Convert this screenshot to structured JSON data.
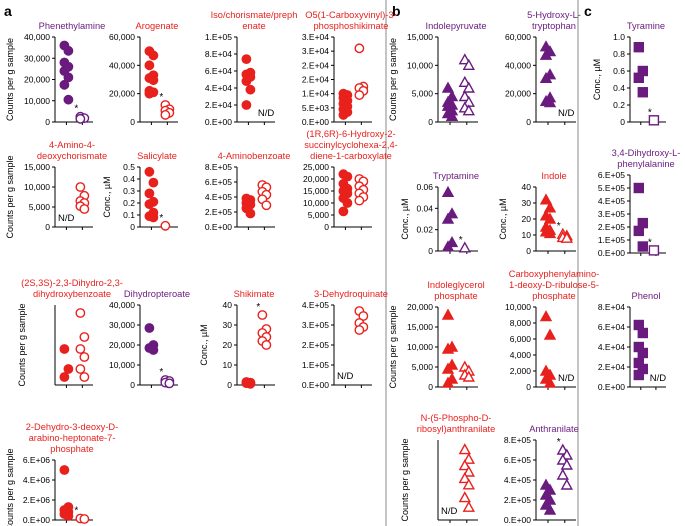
{
  "panel_letters": [
    "a",
    "b",
    "c"
  ],
  "colors": {
    "red": "#e8211d",
    "purple": "#6a1b7e",
    "axis": "#000000"
  },
  "chart_data": [
    {
      "type": "scatter",
      "panel": "a",
      "title": [
        "Phenethylamine"
      ],
      "color": "purple",
      "marker": "circle",
      "ylabel": "Counts per g sample",
      "yticks": [
        "0",
        "10,000",
        "20,000",
        "30,000",
        "40,000"
      ],
      "ylim": [
        0,
        40000
      ],
      "filled": [
        36000,
        33500,
        28000,
        26000,
        24000,
        21000,
        17500,
        10500
      ],
      "open": [
        2500,
        1800,
        1500
      ],
      "star": true,
      "nd": false
    },
    {
      "type": "scatter",
      "panel": "a",
      "title": [
        "Arogenate"
      ],
      "color": "red",
      "marker": "circle",
      "ylabel": "",
      "yticks": [
        "0",
        "20,000",
        "40,000",
        "60,000"
      ],
      "ylim": [
        0,
        60000
      ],
      "filled": [
        50000,
        47000,
        40000,
        33000,
        31000,
        29500,
        22000,
        21000,
        20000
      ],
      "open": [
        12000,
        9000,
        8000,
        6500,
        5000
      ],
      "star": true,
      "nd": false
    },
    {
      "type": "scatter",
      "panel": "a",
      "title": [
        "Iso/chorismate/preph",
        "enate"
      ],
      "color": "red",
      "marker": "circle",
      "ylabel": "",
      "yticks": [
        "0.E+00",
        "2.E+04",
        "4.E+04",
        "6.E+04",
        "8.E+04",
        "1.E+05"
      ],
      "ylim": [
        0,
        100000
      ],
      "filled": [
        74000,
        58000,
        56000,
        53000,
        48000,
        38000,
        20000
      ],
      "open": [],
      "star": false,
      "nd": true
    },
    {
      "type": "scatter",
      "panel": "a",
      "title": [
        "O5(1-Carboxyvinyl)-3-",
        "phosphoshikimate"
      ],
      "color": "red",
      "marker": "circle",
      "ylabel": "",
      "yticks": [
        "0.E+00",
        "5.E+03",
        "1.E+04",
        "2.E+04",
        "2.E+04",
        "3.E+04",
        "3.E+04"
      ],
      "ylim": [
        0,
        30000
      ],
      "filled": [
        10000,
        9500,
        8500,
        7500,
        6500,
        5500,
        4500,
        3500,
        2500
      ],
      "open": [
        26000,
        12500,
        12000,
        11000,
        9500
      ],
      "star": false,
      "nd": false
    },
    {
      "type": "scatter",
      "panel": "a",
      "title": [
        "4-Amino-4-",
        "deoxychorismate"
      ],
      "color": "red",
      "marker": "circle",
      "ylabel": "Counts per g sample",
      "yticks": [
        "0",
        "5,000",
        "10,000",
        "15,000"
      ],
      "ylim": [
        0,
        15000
      ],
      "filled": [],
      "open": [
        10000,
        7800,
        6500,
        6000,
        5200,
        4500
      ],
      "star": false,
      "nd": true
    },
    {
      "type": "scatter",
      "panel": "a",
      "title": [
        "Salicylate"
      ],
      "color": "red",
      "marker": "circle",
      "ylabel": "Conc., µM",
      "yticks": [
        "0",
        "0.1",
        "0.2",
        "0.3",
        "0.4",
        "0.5"
      ],
      "ylim": [
        0,
        0.5
      ],
      "filled": [
        0.46,
        0.37,
        0.28,
        0.21,
        0.19,
        0.12,
        0.09,
        0.08
      ],
      "open": [
        0.01
      ],
      "star": true,
      "nd": false
    },
    {
      "type": "scatter",
      "panel": "a",
      "title": [
        "4-Aminobenzoate"
      ],
      "color": "red",
      "marker": "circle",
      "ylabel": "",
      "yticks": [
        "0.E+00",
        "2.E+05",
        "4.E+05",
        "6.E+05",
        "8.E+05"
      ],
      "ylim": [
        0,
        800000
      ],
      "filled": [
        380000,
        360000,
        320000,
        300000,
        250000,
        180000
      ],
      "open": [
        560000,
        530000,
        470000,
        430000,
        370000,
        290000
      ],
      "star": false,
      "nd": false
    },
    {
      "type": "scatter",
      "panel": "a",
      "title": [
        "(1R,6R)-6-Hydroxy-2-",
        "succinylcyclohexa-2,4-",
        "diene-1-carboxylate"
      ],
      "color": "red",
      "marker": "circle",
      "ylabel": "",
      "yticks": [
        "0",
        "5,000",
        "10,000",
        "15,000",
        "20,000",
        "25,000"
      ],
      "ylim": [
        0,
        25000
      ],
      "filled": [
        22000,
        21000,
        18000,
        16000,
        15000,
        14000,
        12000,
        10000,
        6500
      ],
      "open": [
        20000,
        19000,
        17000,
        15500,
        14000,
        12500,
        11000
      ],
      "star": false,
      "nd": false
    },
    {
      "type": "scatter",
      "panel": "a",
      "title": [
        "(2S,3S)-2,3-Dihydro-2,3-",
        "dihydroxybenzoate"
      ],
      "color": "red",
      "marker": "circle",
      "ylabel": "Counts per g sample",
      "yticks": [],
      "ylim": [
        0,
        2000
      ],
      "filled": [
        900,
        400,
        200
      ],
      "open": [
        1800,
        1200,
        900,
        700,
        400,
        200
      ],
      "star": false,
      "nd": false
    },
    {
      "type": "scatter",
      "panel": "a",
      "title": [
        "Dihydropteroate"
      ],
      "color": "purple",
      "marker": "circle",
      "ylabel": "",
      "yticks": [
        "0",
        "10,000",
        "20,000",
        "30,000",
        "40,000"
      ],
      "ylim": [
        0,
        40000
      ],
      "filled": [
        28500,
        20000,
        18500,
        17500
      ],
      "open": [
        2500,
        2000,
        1200,
        800
      ],
      "star": true,
      "nd": false
    },
    {
      "type": "scatter",
      "panel": "a",
      "title": [
        "Shikimate"
      ],
      "color": "red",
      "marker": "circle",
      "ylabel": "Conc., µM",
      "yticks": [
        "0",
        "10",
        "20",
        "30",
        "40"
      ],
      "ylim": [
        0,
        40
      ],
      "filled": [
        1.5,
        1.2,
        0.9,
        0.6
      ],
      "open": [
        35,
        28,
        26,
        24,
        22,
        20
      ],
      "star": true,
      "nd": false
    },
    {
      "type": "scatter",
      "panel": "a",
      "title": [
        "3-Dehydroquinate"
      ],
      "color": "red",
      "marker": "circle",
      "ylabel": "",
      "yticks": [
        "0.E+00",
        "1.E+05",
        "2.E+05",
        "3.E+05",
        "4.E+05"
      ],
      "ylim": [
        0,
        400000
      ],
      "filled": [],
      "open": [
        370000,
        345000,
        310000,
        290000,
        275000
      ],
      "star": false,
      "nd": true
    },
    {
      "type": "scatter",
      "panel": "a",
      "title": [
        "2-Dehydro-3-deoxy-D-",
        "arabino-heptonate-7-",
        "phosphate"
      ],
      "color": "red",
      "marker": "circle",
      "ylabel": "Counts per g sample",
      "yticks": [
        "0.E+00",
        "2.E+06",
        "4.E+06",
        "6.E+06"
      ],
      "ylim": [
        0,
        6000000
      ],
      "filled": [
        5000000,
        1300000,
        1000000,
        800000,
        600000,
        400000
      ],
      "open": [
        150000,
        100000
      ],
      "star": true,
      "nd": false
    },
    {
      "type": "scatter",
      "panel": "b",
      "title": [
        "Indolepyruvate"
      ],
      "color": "purple",
      "marker": "triangle",
      "ylabel": "Counts per g sample",
      "yticks": [
        "0",
        "5,000",
        "10,000",
        "15,000"
      ],
      "ylim": [
        0,
        15000
      ],
      "filled": [
        6000,
        4500,
        3500,
        3000,
        2800,
        2000,
        1500,
        1000
      ],
      "open": [
        11000,
        10000,
        7000,
        6000,
        4500,
        3500,
        2500,
        2000
      ],
      "star": false,
      "nd": false
    },
    {
      "type": "scatter",
      "panel": "b",
      "title": [
        "5-Hydroxy-L-",
        "tryptophan"
      ],
      "color": "purple",
      "marker": "triangle",
      "ylabel": "",
      "yticks": [
        "0",
        "20,000",
        "40,000",
        "60,000"
      ],
      "ylim": [
        0,
        70000
      ],
      "filled": [
        62000,
        58000,
        55000,
        39000,
        36000,
        20000,
        17000,
        16000
      ],
      "open": [],
      "star": false,
      "nd": true
    },
    {
      "type": "scatter",
      "panel": "b",
      "title": [
        "Tryptamine"
      ],
      "color": "purple",
      "marker": "triangle",
      "ylabel": "Conc., µM",
      "yticks": [
        "0",
        "0.02",
        "0.04",
        "0.06"
      ],
      "ylim": [
        0,
        0.06
      ],
      "filled": [
        0.055,
        0.035,
        0.03,
        0.008,
        0.004
      ],
      "open": [
        0.003
      ],
      "star": true,
      "nd": false
    },
    {
      "type": "scatter",
      "panel": "b",
      "title": [
        "Indole"
      ],
      "color": "red",
      "marker": "triangle",
      "ylabel": "Conc., µM",
      "yticks": [
        "0",
        "10",
        "20",
        "30",
        "40"
      ],
      "ylim": [
        0,
        40
      ],
      "filled": [
        32,
        27,
        22,
        20,
        15,
        13,
        12,
        11
      ],
      "open": [
        10.5,
        9.5,
        8.5,
        8
      ],
      "star": true,
      "nd": false
    },
    {
      "type": "scatter",
      "panel": "b",
      "title": [
        "Indoleglycerol",
        "phosphate"
      ],
      "color": "red",
      "marker": "triangle",
      "ylabel": "Counts per g sample",
      "yticks": [
        "0",
        "5,000",
        "10,000",
        "15,000",
        "20,000"
      ],
      "ylim": [
        0,
        20000
      ],
      "filled": [
        18000,
        10000,
        9500,
        5500,
        4500,
        2000,
        1000
      ],
      "open": [
        5000,
        4000,
        3000,
        2500
      ],
      "star": false,
      "nd": false
    },
    {
      "type": "scatter",
      "panel": "b",
      "title": [
        "Carboxyphenylamino-",
        "1-deoxy-D-ribulose-5-",
        "phosphate"
      ],
      "color": "red",
      "marker": "triangle",
      "ylabel": "",
      "yticks": [
        "0",
        "2,000",
        "4,000",
        "6,000",
        "8,000",
        "10,000"
      ],
      "ylim": [
        0,
        10000
      ],
      "filled": [
        8800,
        6500,
        2000,
        1500,
        1000,
        500
      ],
      "open": [],
      "star": false,
      "nd": true
    },
    {
      "type": "scatter",
      "panel": "b",
      "title": [
        "N-(5-Phospho-D-",
        "ribosyl)anthranilate"
      ],
      "color": "red",
      "marker": "triangle",
      "ylabel": "Counts per g sample",
      "yticks": [],
      "ylim": [
        0,
        2500
      ],
      "filled": [],
      "open": [
        2200,
        1900,
        1700,
        1500,
        1300,
        1100,
        700,
        400
      ],
      "star": false,
      "nd": true
    },
    {
      "type": "scatter",
      "panel": "b",
      "title": [
        "Anthranilate"
      ],
      "color": "purple",
      "marker": "triangle",
      "ylabel": "",
      "yticks": [
        "0.E+00",
        "2.E+05",
        "4.E+05",
        "6.E+05",
        "8.E+05"
      ],
      "ylim": [
        0,
        800000
      ],
      "filled": [
        350000,
        300000,
        250000,
        200000,
        150000,
        100000
      ],
      "open": [
        700000,
        650000,
        600000,
        550000,
        450000,
        350000
      ],
      "star": true,
      "nd": false
    },
    {
      "type": "scatter",
      "panel": "c",
      "title": [
        "Tyramine"
      ],
      "color": "purple",
      "marker": "square",
      "ylabel": "Conc., µM",
      "yticks": [
        "0",
        "0.2",
        "0.4",
        "0.6",
        "0.8",
        "1.0"
      ],
      "ylim": [
        0,
        1.0
      ],
      "filled": [
        0.88,
        0.6,
        0.52,
        0.35
      ],
      "open": [
        0.02
      ],
      "star": true,
      "nd": false
    },
    {
      "type": "scatter",
      "panel": "c",
      "title": [
        "3,4-Dihydroxy-L-",
        "phenylalanine"
      ],
      "color": "purple",
      "marker": "square",
      "ylabel": "",
      "yticks": [
        "0.E+00",
        "1.E+05",
        "2.E+05",
        "3.E+05",
        "4.E+05",
        "5.E+05",
        "6.E+05"
      ],
      "ylim": [
        0,
        600000
      ],
      "filled": [
        500000,
        230000,
        170000,
        50000
      ],
      "open": [
        20000
      ],
      "star": true,
      "nd": false
    },
    {
      "type": "scatter",
      "panel": "c",
      "title": [
        "Phenol"
      ],
      "color": "purple",
      "marker": "square",
      "ylabel": "",
      "yticks": [
        "0.E+00",
        "2.E+04",
        "4.E+04",
        "6.E+04",
        "8.E+04"
      ],
      "ylim": [
        0,
        80000
      ],
      "filled": [
        62000,
        54000,
        40000,
        34000,
        24000,
        18000,
        12000
      ],
      "open": [],
      "star": false,
      "nd": true
    }
  ],
  "labels": {
    "nd": "N/D",
    "star": "*"
  }
}
